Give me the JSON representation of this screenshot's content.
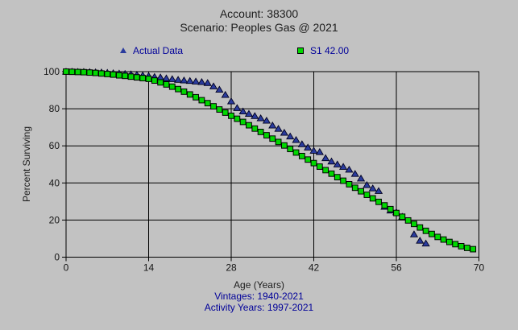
{
  "colors": {
    "background": "#c2c2c2",
    "grid": "#000000",
    "navy_text": "#000099",
    "title_text": "#1c1c1c",
    "actual_marker": "#2a3b9d",
    "fitted_marker": "#00d800"
  },
  "chart_data": {
    "type": "scatter",
    "title": "Account: 38300",
    "subtitle": "Scenario: Peoples Gas @ 2021",
    "xlabel": "Age (Years)",
    "ylabel": "Percent Surviving",
    "footnotes": [
      "Vintages: 1940-2021",
      "Activity Years: 1997-2021"
    ],
    "xlim": [
      0,
      70
    ],
    "ylim": [
      0,
      100
    ],
    "x_ticks": [
      0,
      14,
      28,
      42,
      56,
      70
    ],
    "y_ticks": [
      0,
      20,
      40,
      60,
      80,
      100
    ],
    "grid": true,
    "legend_position": "top",
    "series": [
      {
        "name": "Actual Data",
        "marker": "triangle",
        "fill": "#2a3b9d",
        "points": [
          [
            0,
            100
          ],
          [
            1,
            100
          ],
          [
            2,
            99.9
          ],
          [
            3,
            99.9
          ],
          [
            4,
            99.8
          ],
          [
            5,
            99.7
          ],
          [
            6,
            99.6
          ],
          [
            7,
            99.4
          ],
          [
            8,
            99.2
          ],
          [
            9,
            99.0
          ],
          [
            10,
            98.8
          ],
          [
            11,
            98.6
          ],
          [
            12,
            98.3
          ],
          [
            13,
            98.0
          ],
          [
            14,
            97.7
          ],
          [
            15,
            97.2
          ],
          [
            16,
            96.9
          ],
          [
            17,
            96.4
          ],
          [
            18,
            96.0
          ],
          [
            19,
            95.6
          ],
          [
            20,
            95.3
          ],
          [
            21,
            95.0
          ],
          [
            22,
            94.7
          ],
          [
            23,
            94.4
          ],
          [
            24,
            93.9
          ],
          [
            25,
            92.1
          ],
          [
            26,
            90.3
          ],
          [
            27,
            87.5
          ],
          [
            28,
            84.0
          ],
          [
            29,
            80.4
          ],
          [
            30,
            78.6
          ],
          [
            31,
            77.3
          ],
          [
            32,
            76.1
          ],
          [
            33,
            74.9
          ],
          [
            34,
            73.6
          ],
          [
            35,
            71.0
          ],
          [
            36,
            69.2
          ],
          [
            37,
            67.1
          ],
          [
            38,
            65.1
          ],
          [
            39,
            63.2
          ],
          [
            40,
            60.9
          ],
          [
            41,
            59.1
          ],
          [
            42,
            57.4
          ],
          [
            43,
            56.7
          ],
          [
            44,
            53.4
          ],
          [
            45,
            51.6
          ],
          [
            46,
            50.0
          ],
          [
            47,
            48.7
          ],
          [
            48,
            47.2
          ],
          [
            49,
            44.9
          ],
          [
            50,
            42.4
          ],
          [
            51,
            38.9
          ],
          [
            52,
            37.1
          ],
          [
            53,
            35.7
          ],
          [
            54,
            27.2
          ],
          [
            55,
            25.2
          ],
          [
            56,
            24.2
          ],
          [
            57,
            21.8
          ],
          [
            59,
            12.3
          ],
          [
            60,
            8.9
          ],
          [
            61,
            7.4
          ]
        ]
      },
      {
        "name": "S1 42.00",
        "marker": "square",
        "fill": "#00d800",
        "points": [
          [
            0,
            100
          ],
          [
            1,
            99.9
          ],
          [
            2,
            99.8
          ],
          [
            3,
            99.7
          ],
          [
            4,
            99.5
          ],
          [
            5,
            99.3
          ],
          [
            6,
            99.0
          ],
          [
            7,
            98.7
          ],
          [
            8,
            98.4
          ],
          [
            9,
            98.0
          ],
          [
            10,
            97.7
          ],
          [
            11,
            97.3
          ],
          [
            12,
            96.9
          ],
          [
            13,
            96.5
          ],
          [
            14,
            96.1
          ],
          [
            15,
            95.2
          ],
          [
            16,
            94.2
          ],
          [
            17,
            93.1
          ],
          [
            18,
            91.9
          ],
          [
            19,
            90.6
          ],
          [
            20,
            89.2
          ],
          [
            21,
            87.7
          ],
          [
            22,
            86.2
          ],
          [
            23,
            84.6
          ],
          [
            24,
            83.0
          ],
          [
            25,
            81.3
          ],
          [
            26,
            79.6
          ],
          [
            27,
            77.9
          ],
          [
            28,
            76.2
          ],
          [
            29,
            74.6
          ],
          [
            30,
            72.9
          ],
          [
            31,
            71.1
          ],
          [
            32,
            69.3
          ],
          [
            33,
            67.5
          ],
          [
            34,
            65.7
          ],
          [
            35,
            63.9
          ],
          [
            36,
            62.1
          ],
          [
            37,
            60.2
          ],
          [
            38,
            58.3
          ],
          [
            39,
            56.4
          ],
          [
            40,
            54.5
          ],
          [
            41,
            52.6
          ],
          [
            42,
            50.7
          ],
          [
            43,
            48.8
          ],
          [
            44,
            46.9
          ],
          [
            45,
            45.0
          ],
          [
            46,
            43.1
          ],
          [
            47,
            41.2
          ],
          [
            48,
            39.3
          ],
          [
            49,
            37.4
          ],
          [
            50,
            35.5
          ],
          [
            51,
            33.6
          ],
          [
            52,
            31.7
          ],
          [
            53,
            29.8
          ],
          [
            54,
            27.9
          ],
          [
            55,
            25.9
          ],
          [
            56,
            23.8
          ],
          [
            57,
            21.8
          ],
          [
            58,
            19.8
          ],
          [
            59,
            17.9
          ],
          [
            60,
            16.0
          ],
          [
            61,
            14.2
          ],
          [
            62,
            12.5
          ],
          [
            63,
            10.9
          ],
          [
            64,
            9.5
          ],
          [
            65,
            8.2
          ],
          [
            66,
            7.0
          ],
          [
            67,
            5.9
          ],
          [
            68,
            5.0
          ],
          [
            69,
            4.3
          ]
        ]
      }
    ]
  }
}
